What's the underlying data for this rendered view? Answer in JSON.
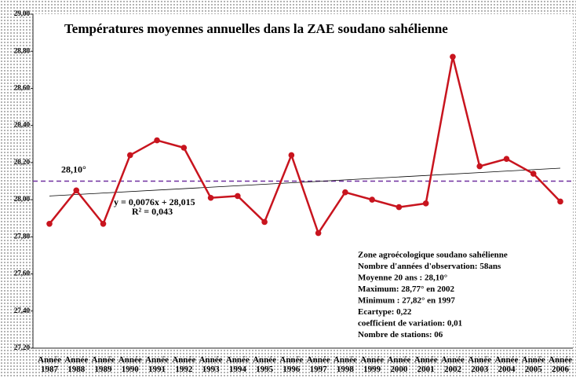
{
  "chart_data": {
    "type": "line",
    "title": "Températures moyennes annuelles dans la ZAE soudano sahélienne",
    "categories": [
      "Année 1987",
      "Année 1988",
      "Année 1989",
      "Année 1990",
      "Année 1991",
      "Année 1992",
      "Année 1993",
      "Année 1994",
      "Année 1995",
      "Année 1996",
      "Année 1997",
      "Année 1998",
      "Année 1999",
      "Année 2000",
      "Année 2001",
      "Année 2002",
      "Année 2003",
      "Année 2004",
      "Année 2005",
      "Année 2006"
    ],
    "values": [
      27.87,
      28.05,
      27.87,
      28.24,
      28.32,
      28.28,
      28.01,
      28.02,
      27.88,
      28.24,
      27.82,
      28.04,
      28.0,
      27.96,
      27.98,
      28.77,
      28.18,
      28.22,
      28.14,
      27.99
    ],
    "color": "#c8141e",
    "ylim": [
      27.2,
      29.0
    ],
    "yticks": [
      {
        "value": 27.2,
        "label": "27,20"
      },
      {
        "value": 27.4,
        "label": "27,40"
      },
      {
        "value": 27.6,
        "label": "27,60"
      },
      {
        "value": 27.8,
        "label": "27,80"
      },
      {
        "value": 28.0,
        "label": "28,00"
      },
      {
        "value": 28.2,
        "label": "28,20"
      },
      {
        "value": 28.4,
        "label": "28,40"
      },
      {
        "value": 28.6,
        "label": "28,60"
      },
      {
        "value": 28.8,
        "label": "28,80"
      },
      {
        "value": 29.0,
        "label": "29,00"
      }
    ],
    "mean": {
      "value": 28.1,
      "label": "28,10°",
      "color": "#7030a0"
    },
    "trend": {
      "values": [
        28.02,
        28.17
      ],
      "equation": "y = 0,0076x + 28,015",
      "r2": "R² = 0,043",
      "color": "#000000"
    },
    "annotations": [
      "Zone agroécologique soudano sahélienne",
      "Nombre d'années d'observation:  58ans",
      "Moyenne 20 ans : 28,10°",
      "Maximum:  28,77° en 2002",
      "Minimum  : 27,82° en 1997",
      "Ecartype:  0,22",
      "coefficient de variation:    0,01",
      "Nombre de stations: 06"
    ]
  }
}
